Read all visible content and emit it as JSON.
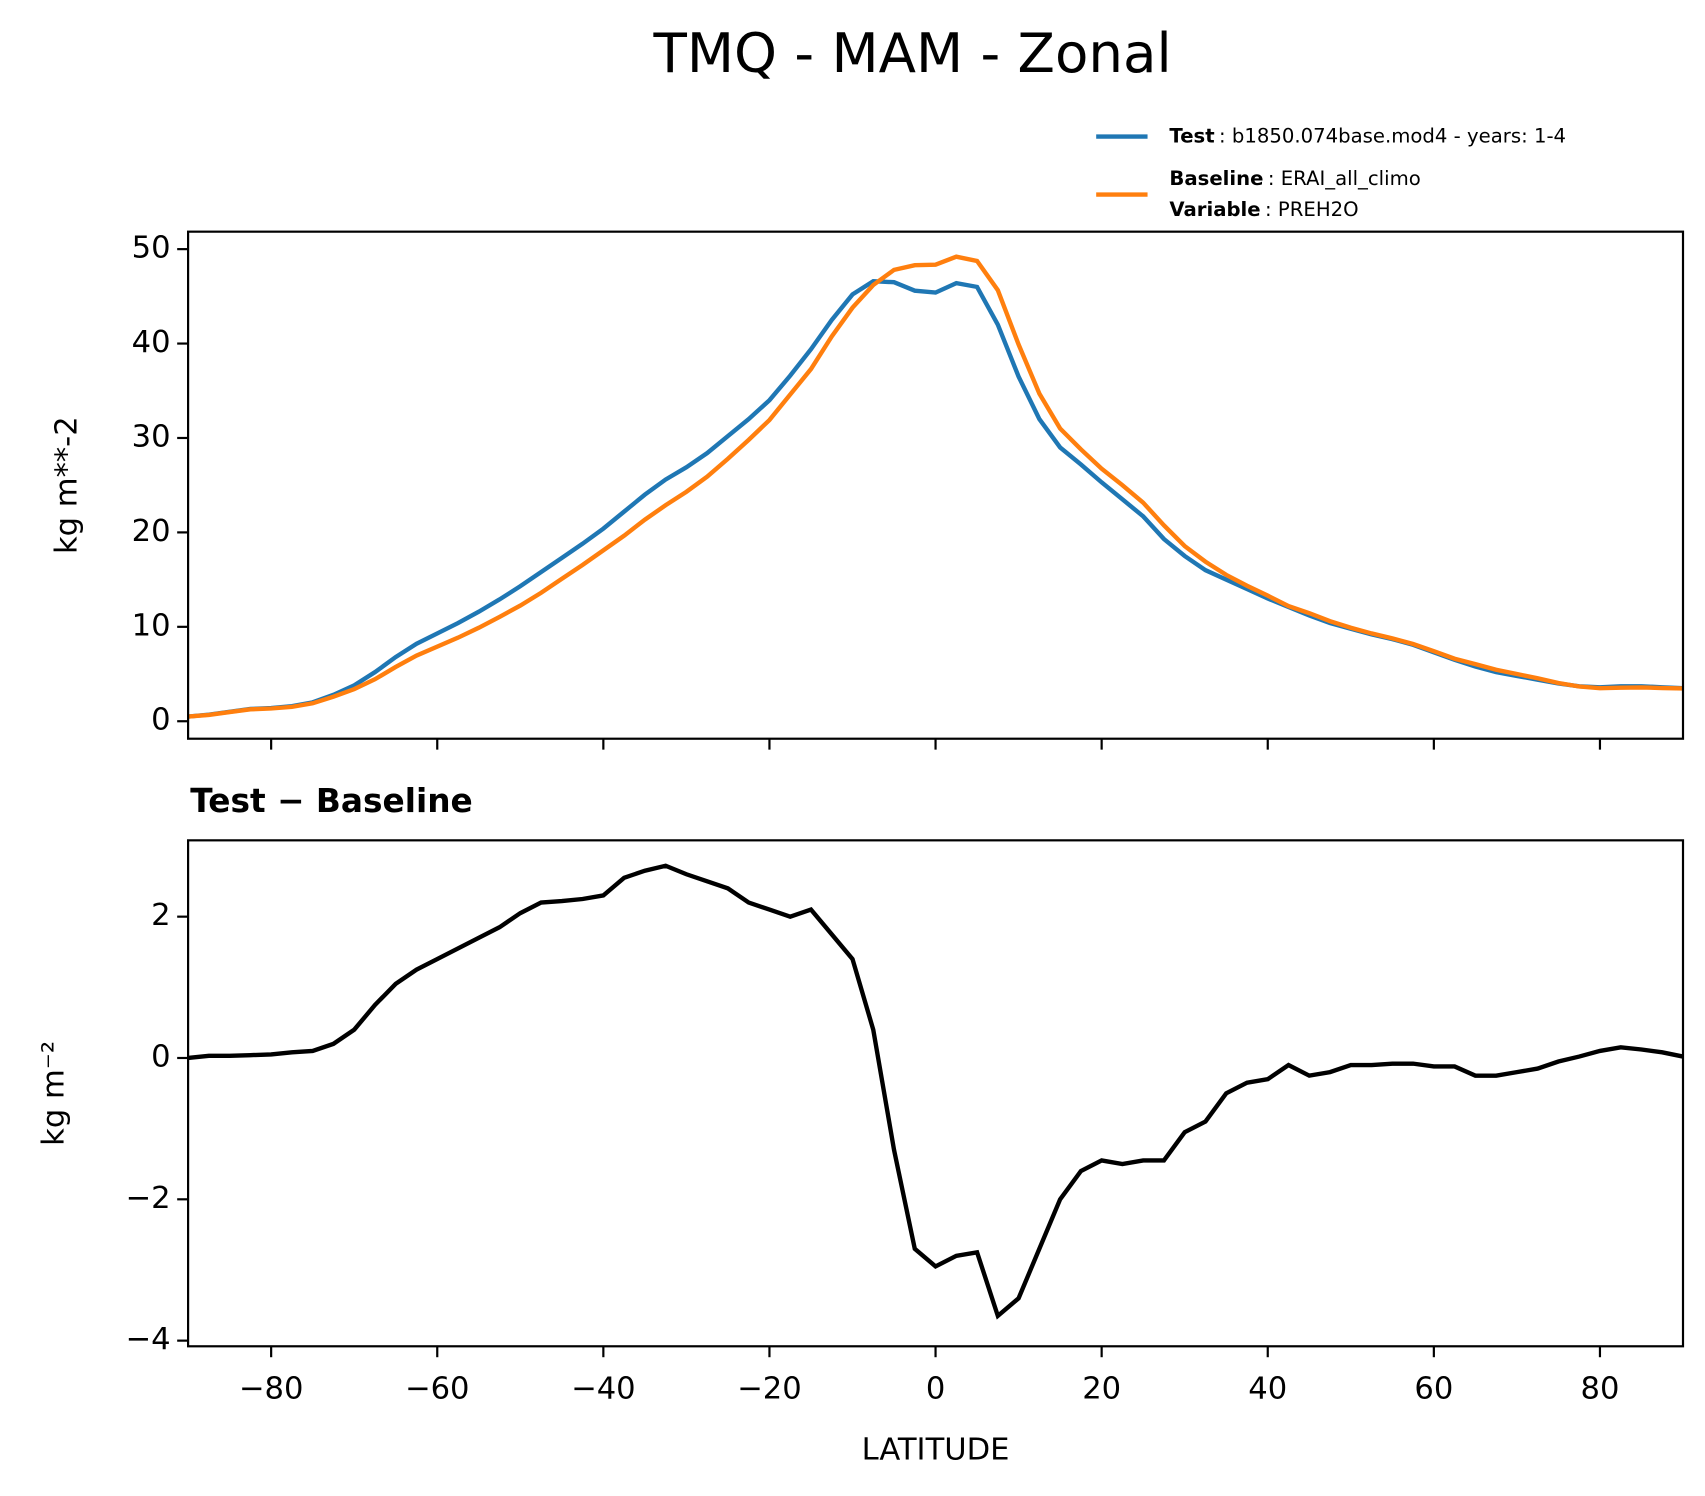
{
  "title": "TMQ - MAM - Zonal",
  "chart_data": [
    {
      "type": "line",
      "ylabel": "kg m**-2",
      "xlim": [
        -90,
        90
      ],
      "ylim": [
        -1.85,
        51.85
      ],
      "xticks": [
        -80,
        -60,
        -40,
        -20,
        0,
        20,
        40,
        60,
        80
      ],
      "yticks": [
        0,
        10,
        20,
        30,
        40,
        50
      ],
      "x": [
        -90,
        -87.5,
        -85,
        -82.5,
        -80,
        -77.5,
        -75,
        -72.5,
        -70,
        -67.5,
        -65,
        -62.5,
        -60,
        -57.5,
        -55,
        -52.5,
        -50,
        -47.5,
        -45,
        -42.5,
        -40,
        -37.5,
        -35,
        -32.5,
        -30,
        -27.5,
        -25,
        -22.5,
        -20,
        -17.5,
        -15,
        -12.5,
        -10,
        -7.5,
        -5,
        -2.5,
        0,
        2.5,
        5,
        7.5,
        10,
        12.5,
        15,
        17.5,
        20,
        22.5,
        25,
        27.5,
        30,
        32.5,
        35,
        37.5,
        40,
        42.5,
        45,
        47.5,
        50,
        52.5,
        55,
        57.5,
        60,
        62.5,
        65,
        67.5,
        70,
        72.5,
        75,
        77.5,
        80,
        82.5,
        85,
        87.5,
        90
      ],
      "series": [
        {
          "name": "Test",
          "description": ": b1850.074base.mod4 - years: 1-4",
          "color": "#1f77b4",
          "values": [
            0.5,
            0.7,
            1.0,
            1.3,
            1.4,
            1.6,
            2.0,
            2.8,
            3.8,
            5.2,
            6.8,
            8.2,
            9.3,
            10.4,
            11.6,
            12.9,
            14.3,
            15.8,
            17.3,
            18.8,
            20.4,
            22.2,
            24.0,
            25.6,
            26.9,
            28.4,
            30.2,
            32.0,
            34.0,
            36.6,
            39.4,
            42.5,
            45.2,
            46.6,
            46.5,
            45.6,
            45.4,
            46.4,
            46.0,
            42.0,
            36.5,
            32.0,
            29.0,
            27.2,
            25.3,
            23.5,
            21.7,
            19.3,
            17.5,
            16.0,
            15.0,
            14.0,
            13.0,
            12.1,
            11.2,
            10.4,
            9.8,
            9.2,
            8.7,
            8.1,
            7.3,
            6.5,
            5.8,
            5.2,
            4.8,
            4.4,
            4.0,
            3.7,
            3.6,
            3.7,
            3.7,
            3.6,
            3.5
          ]
        },
        {
          "name": "Baseline",
          "description": ": ERAI_all_climo",
          "variable_name": "Variable",
          "variable": ": PREH2O",
          "color": "#ff7f0e",
          "values": [
            0.5,
            0.67,
            0.97,
            1.26,
            1.35,
            1.52,
            1.9,
            2.6,
            3.4,
            4.45,
            5.75,
            6.95,
            7.9,
            8.85,
            9.9,
            11.05,
            12.25,
            13.6,
            15.08,
            16.55,
            18.1,
            19.65,
            21.35,
            22.88,
            24.3,
            25.9,
            27.8,
            29.8,
            31.9,
            34.6,
            37.3,
            40.75,
            43.8,
            46.2,
            47.8,
            48.3,
            48.35,
            49.2,
            48.75,
            45.65,
            39.9,
            34.7,
            31.0,
            28.8,
            26.75,
            25.0,
            23.15,
            20.75,
            18.55,
            16.9,
            15.5,
            14.35,
            13.3,
            12.2,
            11.45,
            10.6,
            9.9,
            9.3,
            8.78,
            8.18,
            7.42,
            6.62,
            6.05,
            5.45,
            5.0,
            4.55,
            4.05,
            3.68,
            3.5,
            3.55,
            3.58,
            3.52,
            3.48
          ]
        }
      ]
    },
    {
      "type": "line",
      "title": "Test − Baseline",
      "ylabel": "kg m⁻²",
      "xlabel": "LATITUDE",
      "color": "#000000",
      "xlim": [
        -90,
        90
      ],
      "ylim": [
        -4.08,
        3.08
      ],
      "xticks": [
        {
          "value": -80,
          "label": "−80"
        },
        {
          "value": -60,
          "label": "−60"
        },
        {
          "value": -40,
          "label": "−40"
        },
        {
          "value": -20,
          "label": "−20"
        },
        0,
        20,
        40,
        60,
        80
      ],
      "yticks": [
        {
          "value": -4,
          "label": "−4"
        },
        {
          "value": -2,
          "label": "−2"
        },
        0,
        2
      ],
      "x": [
        -90,
        -87.5,
        -85,
        -82.5,
        -80,
        -77.5,
        -75,
        -72.5,
        -70,
        -67.5,
        -65,
        -62.5,
        -60,
        -57.5,
        -55,
        -52.5,
        -50,
        -47.5,
        -45,
        -42.5,
        -40,
        -37.5,
        -35,
        -32.5,
        -30,
        -27.5,
        -25,
        -22.5,
        -20,
        -17.5,
        -15,
        -12.5,
        -10,
        -7.5,
        -5,
        -2.5,
        0,
        2.5,
        5,
        7.5,
        10,
        12.5,
        15,
        17.5,
        20,
        22.5,
        25,
        27.5,
        30,
        32.5,
        35,
        37.5,
        40,
        42.5,
        45,
        47.5,
        50,
        52.5,
        55,
        57.5,
        60,
        62.5,
        65,
        67.5,
        70,
        72.5,
        75,
        77.5,
        80,
        82.5,
        85,
        87.5,
        90
      ],
      "values": [
        0,
        0.03,
        0.03,
        0.04,
        0.05,
        0.08,
        0.1,
        0.2,
        0.4,
        0.75,
        1.05,
        1.25,
        1.4,
        1.55,
        1.7,
        1.85,
        2.05,
        2.2,
        2.22,
        2.25,
        2.3,
        2.55,
        2.65,
        2.72,
        2.6,
        2.5,
        2.4,
        2.2,
        2.1,
        2.0,
        2.1,
        1.75,
        1.4,
        0.4,
        -1.3,
        -2.7,
        -2.95,
        -2.8,
        -2.75,
        -3.65,
        -3.4,
        -2.7,
        -2.0,
        -1.6,
        -1.45,
        -1.5,
        -1.45,
        -1.45,
        -1.05,
        -0.9,
        -0.5,
        -0.35,
        -0.3,
        -0.1,
        -0.25,
        -0.2,
        -0.1,
        -0.1,
        -0.08,
        -0.08,
        -0.12,
        -0.12,
        -0.25,
        -0.25,
        -0.2,
        -0.15,
        -0.05,
        0.02,
        0.1,
        0.15,
        0.12,
        0.08,
        0.02
      ]
    }
  ]
}
